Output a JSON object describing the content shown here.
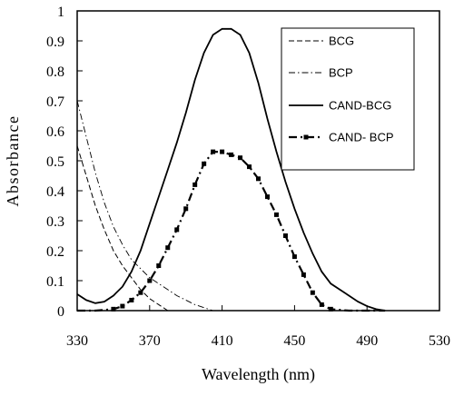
{
  "chart_data": {
    "type": "line",
    "title": "",
    "xlabel": "Wavelength (nm)",
    "ylabel": "Absorbance",
    "xlim": [
      330,
      530
    ],
    "ylim": [
      0,
      1
    ],
    "x_ticks": [
      "330",
      "370",
      "410",
      "450",
      "490",
      "530"
    ],
    "y_ticks": [
      "0",
      "0.1",
      "0.2",
      "0.3",
      "0.4",
      "0.5",
      "0.6",
      "0.7",
      "0.8",
      "0.9",
      "1"
    ],
    "grid": false,
    "legend_position": "top-right",
    "series": [
      {
        "name": "BCG",
        "style": "dashed",
        "points": [
          [
            330,
            0.55
          ],
          [
            335,
            0.45
          ],
          [
            340,
            0.35
          ],
          [
            345,
            0.27
          ],
          [
            350,
            0.2
          ],
          [
            355,
            0.15
          ],
          [
            360,
            0.11
          ],
          [
            365,
            0.07
          ],
          [
            370,
            0.04
          ],
          [
            375,
            0.02
          ],
          [
            380,
            0.0
          ],
          [
            390,
            0.0
          ],
          [
            410,
            0.0
          ],
          [
            450,
            0.0
          ],
          [
            490,
            0.0
          ],
          [
            500,
            0.0
          ]
        ]
      },
      {
        "name": "BCP",
        "style": "dash-dot",
        "points": [
          [
            330,
            0.7
          ],
          [
            335,
            0.58
          ],
          [
            340,
            0.46
          ],
          [
            345,
            0.36
          ],
          [
            350,
            0.28
          ],
          [
            355,
            0.22
          ],
          [
            360,
            0.17
          ],
          [
            365,
            0.14
          ],
          [
            370,
            0.11
          ],
          [
            375,
            0.09
          ],
          [
            380,
            0.07
          ],
          [
            385,
            0.05
          ],
          [
            390,
            0.035
          ],
          [
            395,
            0.02
          ],
          [
            400,
            0.01
          ],
          [
            405,
            0.0
          ],
          [
            420,
            0.0
          ],
          [
            450,
            0.0
          ],
          [
            490,
            0.0
          ],
          [
            500,
            0.0
          ]
        ]
      },
      {
        "name": "CAND-BCG",
        "style": "solid",
        "points": [
          [
            330,
            0.055
          ],
          [
            335,
            0.035
          ],
          [
            340,
            0.025
          ],
          [
            345,
            0.03
          ],
          [
            350,
            0.05
          ],
          [
            355,
            0.08
          ],
          [
            360,
            0.13
          ],
          [
            365,
            0.2
          ],
          [
            370,
            0.29
          ],
          [
            375,
            0.38
          ],
          [
            380,
            0.47
          ],
          [
            385,
            0.56
          ],
          [
            390,
            0.66
          ],
          [
            395,
            0.77
          ],
          [
            400,
            0.86
          ],
          [
            405,
            0.92
          ],
          [
            410,
            0.94
          ],
          [
            415,
            0.94
          ],
          [
            420,
            0.92
          ],
          [
            425,
            0.86
          ],
          [
            430,
            0.76
          ],
          [
            435,
            0.64
          ],
          [
            440,
            0.53
          ],
          [
            445,
            0.43
          ],
          [
            450,
            0.34
          ],
          [
            455,
            0.26
          ],
          [
            460,
            0.19
          ],
          [
            465,
            0.13
          ],
          [
            470,
            0.09
          ],
          [
            475,
            0.07
          ],
          [
            480,
            0.05
          ],
          [
            485,
            0.03
          ],
          [
            490,
            0.015
          ],
          [
            495,
            0.005
          ],
          [
            500,
            0.0
          ]
        ]
      },
      {
        "name": "CAND- BCP",
        "style": "dash-dot-square",
        "points": [
          [
            330,
            0.0
          ],
          [
            340,
            0.0
          ],
          [
            350,
            0.005
          ],
          [
            355,
            0.015
          ],
          [
            360,
            0.035
          ],
          [
            365,
            0.06
          ],
          [
            370,
            0.1
          ],
          [
            375,
            0.15
          ],
          [
            380,
            0.21
          ],
          [
            385,
            0.27
          ],
          [
            390,
            0.34
          ],
          [
            395,
            0.42
          ],
          [
            400,
            0.49
          ],
          [
            405,
            0.53
          ],
          [
            410,
            0.53
          ],
          [
            415,
            0.52
          ],
          [
            420,
            0.51
          ],
          [
            425,
            0.48
          ],
          [
            430,
            0.44
          ],
          [
            435,
            0.38
          ],
          [
            440,
            0.32
          ],
          [
            445,
            0.25
          ],
          [
            450,
            0.18
          ],
          [
            455,
            0.12
          ],
          [
            460,
            0.06
          ],
          [
            465,
            0.02
          ],
          [
            470,
            0.005
          ],
          [
            480,
            0.0
          ],
          [
            500,
            0.0
          ]
        ]
      }
    ]
  }
}
